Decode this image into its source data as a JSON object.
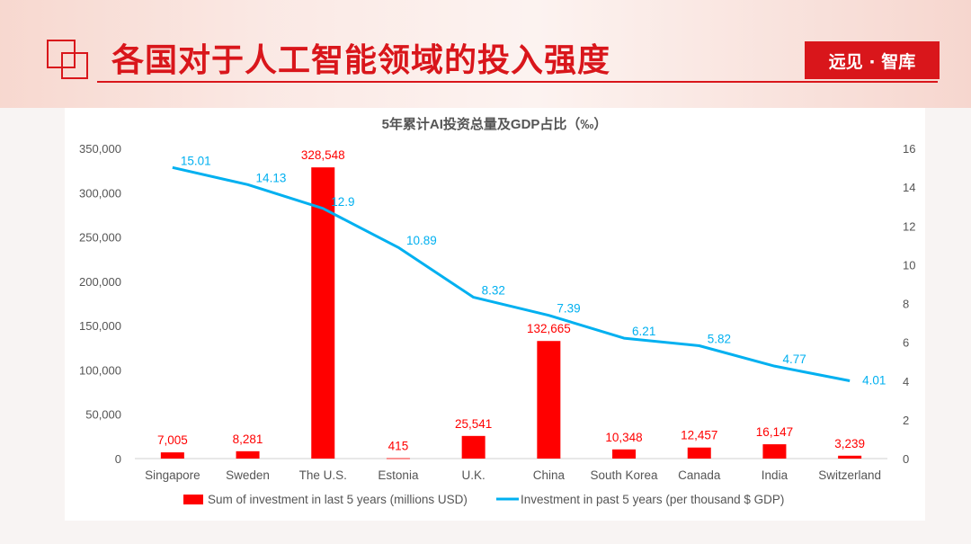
{
  "header": {
    "title": "各国对于人工智能领域的投入强度",
    "brand": "远见 · 智库"
  },
  "colors": {
    "accent": "#d9161b",
    "bar": "#ff0000",
    "line": "#00b0f0"
  },
  "chart_data": {
    "type": "bar",
    "title": "5年累计AI投资总量及GDP占比（‰）",
    "categories": [
      "Singapore",
      "Sweden",
      "The U.S.",
      "Estonia",
      "U.K.",
      "China",
      "South Korea",
      "Canada",
      "India",
      "Switzerland"
    ],
    "series": [
      {
        "name": "Sum of investment in last 5 years (millions USD)",
        "type": "bar",
        "axis": "left",
        "values": [
          7005,
          8281,
          328548,
          415,
          25541,
          132665,
          10348,
          12457,
          16147,
          3239
        ],
        "labels": [
          "7,005",
          "8,281",
          "328,548",
          "415",
          "25,541",
          "132,665",
          "10,348",
          "12,457",
          "16,147",
          "3,239"
        ]
      },
      {
        "name": "Investment in past 5 years (per thousand $ GDP)",
        "type": "line",
        "axis": "right",
        "values": [
          15.01,
          14.13,
          12.9,
          10.89,
          8.32,
          7.39,
          6.21,
          5.82,
          4.77,
          4.01
        ],
        "labels": [
          "15.01",
          "14.13",
          "12.9",
          "10.89",
          "8.32",
          "7.39",
          "6.21",
          "5.82",
          "4.77",
          "4.01"
        ]
      }
    ],
    "y_left": {
      "ylim": [
        0,
        350000
      ],
      "ticks": [
        "0",
        "50,000",
        "100,000",
        "150,000",
        "200,000",
        "250,000",
        "300,000",
        "350,000"
      ]
    },
    "y_right": {
      "ylim": [
        0,
        16
      ],
      "ticks": [
        "0",
        "2",
        "4",
        "6",
        "8",
        "10",
        "12",
        "14",
        "16"
      ]
    },
    "legend_position": "bottom",
    "grid": false
  }
}
